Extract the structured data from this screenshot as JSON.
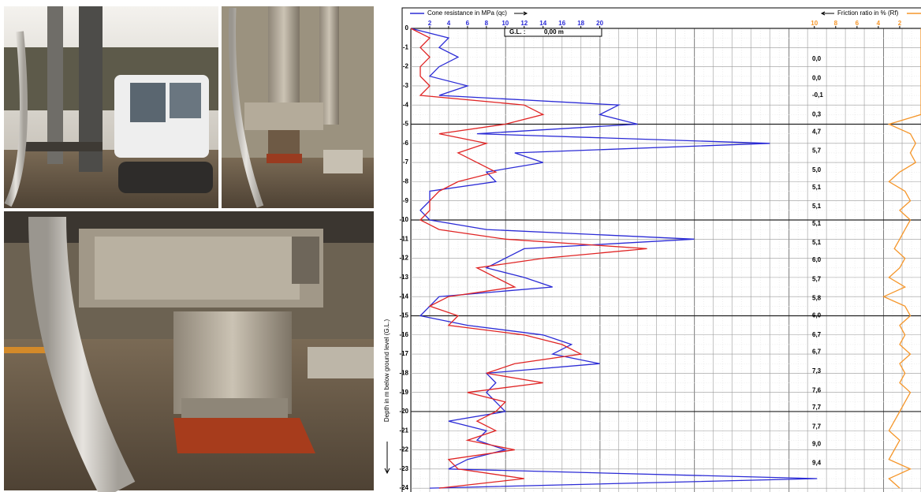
{
  "chart_data": {
    "type": "depth-profile",
    "depth_label": "Depth in m below ground level (G.L.)",
    "gl_label": "G.L. :",
    "gl_value": "0,00 m",
    "depths": [
      0,
      -0.5,
      -1,
      -1.5,
      -2,
      -2.5,
      -3,
      -3.5,
      -4,
      -4.5,
      -5,
      -5.5,
      -6,
      -6.5,
      -7,
      -7.5,
      -8,
      -8.5,
      -9,
      -9.5,
      -10,
      -10.5,
      -11,
      -11.5,
      -12,
      -12.5,
      -13,
      -13.5,
      -14,
      -14.5,
      -15,
      -15.5,
      -16,
      -16.5,
      -17,
      -17.5,
      -18,
      -18.5,
      -19,
      -19.5,
      -20,
      -20.5,
      -21,
      -21.5,
      -22,
      -22.5,
      -23,
      -23.5,
      -24
    ],
    "ylim": [
      -24.2,
      0
    ],
    "yticks": [
      0,
      -1,
      -2,
      -3,
      -4,
      -5,
      -6,
      -7,
      -8,
      -9,
      -10,
      -11,
      -12,
      -13,
      -14,
      -15,
      -16,
      -17,
      -18,
      -19,
      -20,
      -21,
      -22,
      -23,
      -24
    ],
    "xlim": [
      0,
      54
    ],
    "xticks": [
      2,
      4,
      6,
      8,
      10,
      12,
      14,
      16,
      18,
      20
    ],
    "x2lim": [
      10.5,
      0
    ],
    "x2ticks": [
      10,
      8,
      6,
      4,
      2
    ],
    "grid": true,
    "series": [
      {
        "name": "Cone resistance in MPa (qc)",
        "color": "#2b2bd6",
        "values": [
          0,
          4,
          3,
          5,
          3,
          2,
          6,
          3,
          22,
          20,
          24,
          7,
          38,
          11,
          14,
          8,
          9,
          2,
          2,
          1,
          2,
          8,
          30,
          12,
          10,
          8,
          12,
          15,
          3,
          2,
          1,
          6,
          14,
          17,
          15,
          20,
          8,
          9,
          8,
          9,
          10,
          4,
          8,
          7,
          10,
          6,
          4,
          43,
          2
        ]
      },
      {
        "color": "#e02424",
        "values": [
          0,
          2,
          1,
          2,
          1,
          1,
          2,
          1,
          12,
          14,
          10,
          3,
          8,
          5,
          7,
          9,
          5,
          3,
          2,
          2,
          1,
          3,
          10,
          25,
          14,
          7,
          9,
          11,
          4,
          2,
          5,
          4,
          12,
          16,
          18,
          11,
          8,
          14,
          6,
          10,
          9,
          7,
          9,
          6,
          11,
          4,
          5,
          12,
          3
        ]
      },
      {
        "name": "Friction ratio in % (Rf)",
        "color": "#f5962a",
        "axis": "x2",
        "values": [
          0,
          0,
          0,
          0,
          0,
          0,
          0,
          0,
          0,
          0,
          3,
          1,
          0.5,
          1,
          0.5,
          2,
          3,
          1.5,
          1,
          2,
          1,
          1.5,
          2,
          2.5,
          1.5,
          2,
          3,
          1.5,
          3.5,
          1.5,
          1,
          2,
          1.5,
          2,
          1,
          2,
          1.5,
          2,
          1,
          1.5,
          2,
          2.5,
          3,
          2,
          2.5,
          3,
          1,
          3,
          2
        ]
      }
    ],
    "rf_labels": [
      {
        "depth": -1.6,
        "label": "0,0"
      },
      {
        "depth": -2.6,
        "label": "0,0"
      },
      {
        "depth": -3.5,
        "label": "-0,1"
      },
      {
        "depth": -4.5,
        "label": "0,3"
      },
      {
        "depth": -5.4,
        "label": "4,7"
      },
      {
        "depth": -6.4,
        "label": "5,7"
      },
      {
        "depth": -7.4,
        "label": "5,0"
      },
      {
        "depth": -8.3,
        "label": "5,1"
      },
      {
        "depth": -9.3,
        "label": "5,1"
      },
      {
        "depth": -10.2,
        "label": "5,1"
      },
      {
        "depth": -11.2,
        "label": "5,1"
      },
      {
        "depth": -12.1,
        "label": "6,0"
      },
      {
        "depth": -13.1,
        "label": "5,7"
      },
      {
        "depth": -14.1,
        "label": "5,8"
      },
      {
        "depth": -15.0,
        "label": "6,0"
      },
      {
        "depth": -16.0,
        "label": "6,7"
      },
      {
        "depth": -16.9,
        "label": "6,7"
      },
      {
        "depth": -17.9,
        "label": "7,3"
      },
      {
        "depth": -18.9,
        "label": "7,6"
      },
      {
        "depth": -19.8,
        "label": "7,7"
      },
      {
        "depth": -20.8,
        "label": "7,7"
      },
      {
        "depth": -21.7,
        "label": "9,0"
      },
      {
        "depth": -22.7,
        "label": "9,4"
      }
    ]
  }
}
